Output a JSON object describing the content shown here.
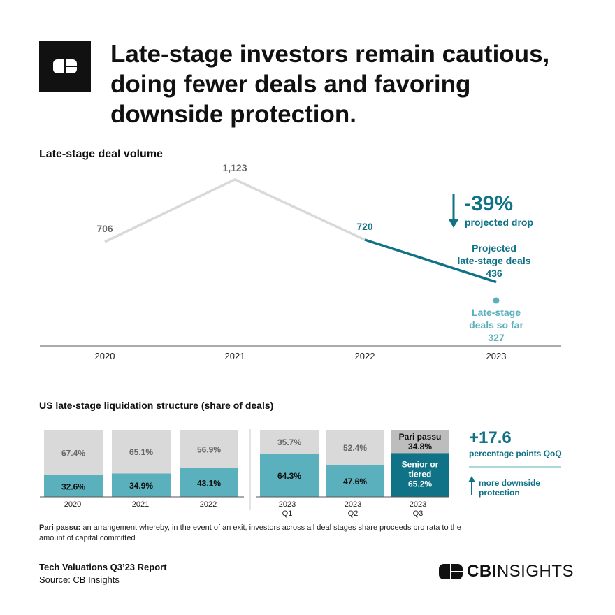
{
  "header": {
    "title": "Late-stage investors remain cautious, doing fewer deals and favoring downside protection."
  },
  "colors": {
    "teal_dark": "#0f7286",
    "teal_light": "#5ab1bd",
    "gray_line": "#d9d9d9",
    "gray_bar": "#d9d9d9",
    "gray_text": "#666666",
    "pari_passu_bar": "#bdbdbd"
  },
  "chart_data": [
    {
      "type": "line",
      "title": "Late-stage deal volume",
      "categories": [
        "2020",
        "2021",
        "2022",
        "2023"
      ],
      "series": [
        {
          "name": "Late-stage deal volume",
          "values": [
            706,
            1123,
            720,
            null
          ],
          "labels": [
            "706",
            "1,123",
            "720",
            ""
          ]
        },
        {
          "name": "Projected late-stage deals",
          "values": [
            null,
            null,
            720,
            436
          ]
        }
      ],
      "projected": {
        "value": 436,
        "label_lines": [
          "Projected",
          "late-stage deals",
          "436"
        ]
      },
      "so_far": {
        "value": 327,
        "label_lines": [
          "Late-stage",
          "deals so far",
          "327"
        ]
      },
      "annotation": {
        "big": "-39%",
        "small": "projected drop",
        "icon": "down-arrow-icon"
      },
      "ylim": [
        0,
        1250
      ]
    },
    {
      "type": "bar",
      "stacked": true,
      "title": "US late-stage liquidation structure (share of deals)",
      "groups": [
        {
          "name": "annual",
          "categories": [
            [
              "2020"
            ],
            [
              "2021"
            ],
            [
              "2022"
            ]
          ]
        },
        {
          "name": "quarterly",
          "categories": [
            [
              "2023",
              "Q1"
            ],
            [
              "2023",
              "Q2"
            ],
            [
              "2023",
              "Q3"
            ]
          ]
        }
      ],
      "series": [
        {
          "name": "Senior or tiered",
          "values": [
            32.6,
            34.9,
            43.1,
            64.3,
            47.6,
            65.2
          ],
          "labels": [
            "32.6%",
            "34.9%",
            "43.1%",
            "64.3%",
            "47.6%",
            "65.2%"
          ]
        },
        {
          "name": "Pari passu",
          "values": [
            67.4,
            65.1,
            56.9,
            35.7,
            52.4,
            34.8
          ],
          "labels": [
            "67.4%",
            "65.1%",
            "56.9%",
            "35.7%",
            "52.4%",
            "34.8%"
          ]
        }
      ],
      "inline_legend": {
        "pari_passu": "Pari passu",
        "senior": [
          "Senior or",
          "tiered"
        ]
      },
      "annotation": {
        "big": "+17.6",
        "small": "percentage points QoQ",
        "note_lines": [
          "more downside",
          "protection"
        ],
        "icon": "up-arrow-icon"
      },
      "ylim": [
        0,
        100
      ]
    }
  ],
  "footnote": {
    "term": "Pari passu:",
    "text": " an arrangement whereby, in the event of an exit, investors across all deal stages share proceeds pro rata to the amount of capital committed"
  },
  "footer": {
    "report": "Tech Valuations Q3’23 Report",
    "source": "Source: CB Insights",
    "brand_bold": "CB",
    "brand_rest": "INSIGHTS"
  }
}
